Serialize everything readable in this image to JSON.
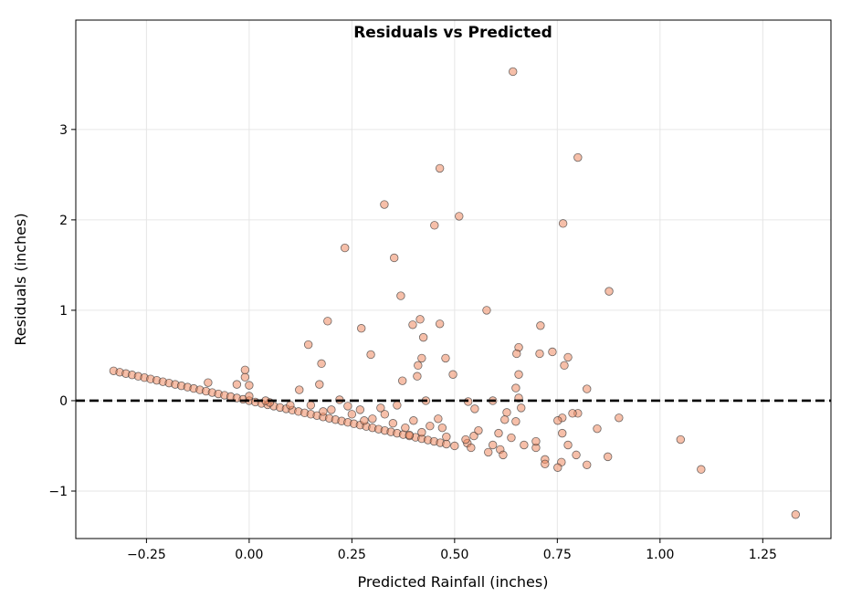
{
  "chart_data": {
    "type": "scatter",
    "title": "Residuals vs Predicted",
    "xlabel": "Predicted Rainfall (inches)",
    "ylabel": "Residuals (inches)",
    "xlim": [
      -0.422,
      1.416
    ],
    "ylim": [
      -1.525,
      4.21
    ],
    "xticks": [
      -0.25,
      0.0,
      0.25,
      0.5,
      0.75,
      1.0,
      1.25
    ],
    "xtick_labels": [
      "−0.25",
      "0.00",
      "0.25",
      "0.50",
      "0.75",
      "1.00",
      "1.25"
    ],
    "yticks": [
      -1,
      0,
      1,
      2,
      3
    ],
    "ytick_labels": [
      "−1",
      "0",
      "1",
      "2",
      "3"
    ],
    "grid": true,
    "reference_line": {
      "y": 0,
      "style": "dashed",
      "color": "#000000"
    },
    "marker_color": "#ef8a62",
    "marker_edge_color": "#333333",
    "points": [
      [
        -0.33,
        0.33
      ],
      [
        -0.315,
        0.315
      ],
      [
        -0.3,
        0.3
      ],
      [
        -0.285,
        0.285
      ],
      [
        -0.27,
        0.27
      ],
      [
        -0.255,
        0.255
      ],
      [
        -0.24,
        0.24
      ],
      [
        -0.225,
        0.225
      ],
      [
        -0.21,
        0.21
      ],
      [
        -0.195,
        0.195
      ],
      [
        -0.18,
        0.18
      ],
      [
        -0.165,
        0.165
      ],
      [
        -0.15,
        0.15
      ],
      [
        -0.135,
        0.135
      ],
      [
        -0.12,
        0.12
      ],
      [
        -0.105,
        0.105
      ],
      [
        -0.09,
        0.09
      ],
      [
        -0.075,
        0.075
      ],
      [
        -0.06,
        0.06
      ],
      [
        -0.045,
        0.045
      ],
      [
        -0.03,
        0.03
      ],
      [
        -0.015,
        0.015
      ],
      [
        0.0,
        0.0
      ],
      [
        0.015,
        -0.015
      ],
      [
        0.03,
        -0.03
      ],
      [
        0.045,
        -0.045
      ],
      [
        0.06,
        -0.06
      ],
      [
        0.075,
        -0.075
      ],
      [
        0.09,
        -0.09
      ],
      [
        0.105,
        -0.105
      ],
      [
        0.12,
        -0.12
      ],
      [
        0.135,
        -0.135
      ],
      [
        0.15,
        -0.15
      ],
      [
        0.165,
        -0.165
      ],
      [
        0.18,
        -0.18
      ],
      [
        0.195,
        -0.195
      ],
      [
        0.21,
        -0.21
      ],
      [
        0.225,
        -0.225
      ],
      [
        0.24,
        -0.24
      ],
      [
        0.255,
        -0.255
      ],
      [
        0.27,
        -0.27
      ],
      [
        0.285,
        -0.285
      ],
      [
        0.3,
        -0.3
      ],
      [
        0.315,
        -0.315
      ],
      [
        0.33,
        -0.33
      ],
      [
        0.345,
        -0.345
      ],
      [
        0.36,
        -0.36
      ],
      [
        0.375,
        -0.375
      ],
      [
        0.39,
        -0.39
      ],
      [
        0.405,
        -0.405
      ],
      [
        0.42,
        -0.42
      ],
      [
        0.435,
        -0.435
      ],
      [
        0.45,
        -0.45
      ],
      [
        0.465,
        -0.465
      ],
      [
        0.48,
        -0.48
      ],
      [
        0.1,
        -0.05
      ],
      [
        0.2,
        -0.1
      ],
      [
        0.22,
        0.01
      ],
      [
        0.25,
        -0.15
      ],
      [
        0.3,
        -0.2
      ],
      [
        0.32,
        -0.08
      ],
      [
        0.35,
        -0.25
      ],
      [
        0.38,
        -0.3
      ],
      [
        0.4,
        -0.22
      ],
      [
        0.42,
        -0.35
      ],
      [
        0.44,
        -0.28
      ],
      [
        0.46,
        -0.2
      ],
      [
        0.47,
        -0.3
      ],
      [
        0.48,
        -0.4
      ],
      [
        0.43,
        0.0
      ],
      [
        0.36,
        -0.05
      ],
      [
        0.27,
        -0.1
      ],
      [
        0.28,
        -0.22
      ],
      [
        0.15,
        -0.05
      ],
      [
        0.05,
        -0.02
      ],
      [
        0.0,
        0.05
      ],
      [
        -0.01,
        0.26
      ],
      [
        -0.01,
        0.34
      ],
      [
        0.0,
        0.17
      ],
      [
        -0.03,
        0.18
      ],
      [
        -0.1,
        0.2
      ],
      [
        0.04,
        0.0
      ],
      [
        0.18,
        -0.12
      ],
      [
        0.24,
        -0.06
      ],
      [
        0.33,
        -0.15
      ],
      [
        0.39,
        -0.38
      ],
      [
        0.5,
        -0.5
      ],
      [
        0.642,
        3.64
      ],
      [
        0.8,
        2.69
      ],
      [
        0.464,
        2.57
      ],
      [
        0.329,
        2.17
      ],
      [
        0.511,
        2.04
      ],
      [
        0.451,
        1.94
      ],
      [
        0.764,
        1.96
      ],
      [
        0.233,
        1.69
      ],
      [
        0.353,
        1.58
      ],
      [
        0.876,
        1.21
      ],
      [
        0.369,
        1.16
      ],
      [
        0.578,
        1.0
      ],
      [
        0.191,
        0.88
      ],
      [
        0.273,
        0.8
      ],
      [
        0.416,
        0.9
      ],
      [
        0.398,
        0.84
      ],
      [
        0.464,
        0.85
      ],
      [
        0.709,
        0.83
      ],
      [
        0.424,
        0.7
      ],
      [
        0.656,
        0.59
      ],
      [
        0.651,
        0.52
      ],
      [
        0.738,
        0.54
      ],
      [
        0.707,
        0.52
      ],
      [
        0.296,
        0.51
      ],
      [
        0.776,
        0.48
      ],
      [
        0.767,
        0.39
      ],
      [
        0.42,
        0.47
      ],
      [
        0.478,
        0.47
      ],
      [
        0.411,
        0.39
      ],
      [
        0.144,
        0.62
      ],
      [
        0.176,
        0.41
      ],
      [
        0.171,
        0.18
      ],
      [
        0.409,
        0.27
      ],
      [
        0.373,
        0.22
      ],
      [
        0.496,
        0.29
      ],
      [
        0.656,
        0.29
      ],
      [
        0.822,
        0.13
      ],
      [
        0.649,
        0.14
      ],
      [
        0.122,
        0.12
      ],
      [
        0.9,
        -0.19
      ],
      [
        1.05,
        -0.43
      ],
      [
        1.1,
        -0.76
      ],
      [
        1.33,
        -1.26
      ],
      [
        0.873,
        -0.62
      ],
      [
        0.796,
        -0.6
      ],
      [
        0.822,
        -0.71
      ],
      [
        0.72,
        -0.65
      ],
      [
        0.72,
        -0.7
      ],
      [
        0.76,
        -0.68
      ],
      [
        0.847,
        -0.31
      ],
      [
        0.8,
        -0.14
      ],
      [
        0.787,
        -0.14
      ],
      [
        0.762,
        -0.19
      ],
      [
        0.762,
        -0.36
      ],
      [
        0.776,
        -0.49
      ],
      [
        0.751,
        -0.22
      ],
      [
        0.698,
        -0.52
      ],
      [
        0.751,
        -0.74
      ],
      [
        0.533,
        -0.01
      ],
      [
        0.593,
        0.0
      ],
      [
        0.656,
        0.03
      ],
      [
        0.549,
        -0.09
      ],
      [
        0.662,
        -0.08
      ],
      [
        0.622,
        -0.21
      ],
      [
        0.649,
        -0.23
      ],
      [
        0.607,
        -0.36
      ],
      [
        0.627,
        -0.13
      ],
      [
        0.593,
        -0.49
      ],
      [
        0.611,
        -0.54
      ],
      [
        0.618,
        -0.6
      ],
      [
        0.669,
        -0.49
      ],
      [
        0.698,
        -0.45
      ],
      [
        0.582,
        -0.57
      ],
      [
        0.547,
        -0.39
      ],
      [
        0.558,
        -0.33
      ],
      [
        0.531,
        -0.47
      ],
      [
        0.54,
        -0.52
      ],
      [
        0.527,
        -0.43
      ],
      [
        0.638,
        -0.41
      ]
    ]
  }
}
